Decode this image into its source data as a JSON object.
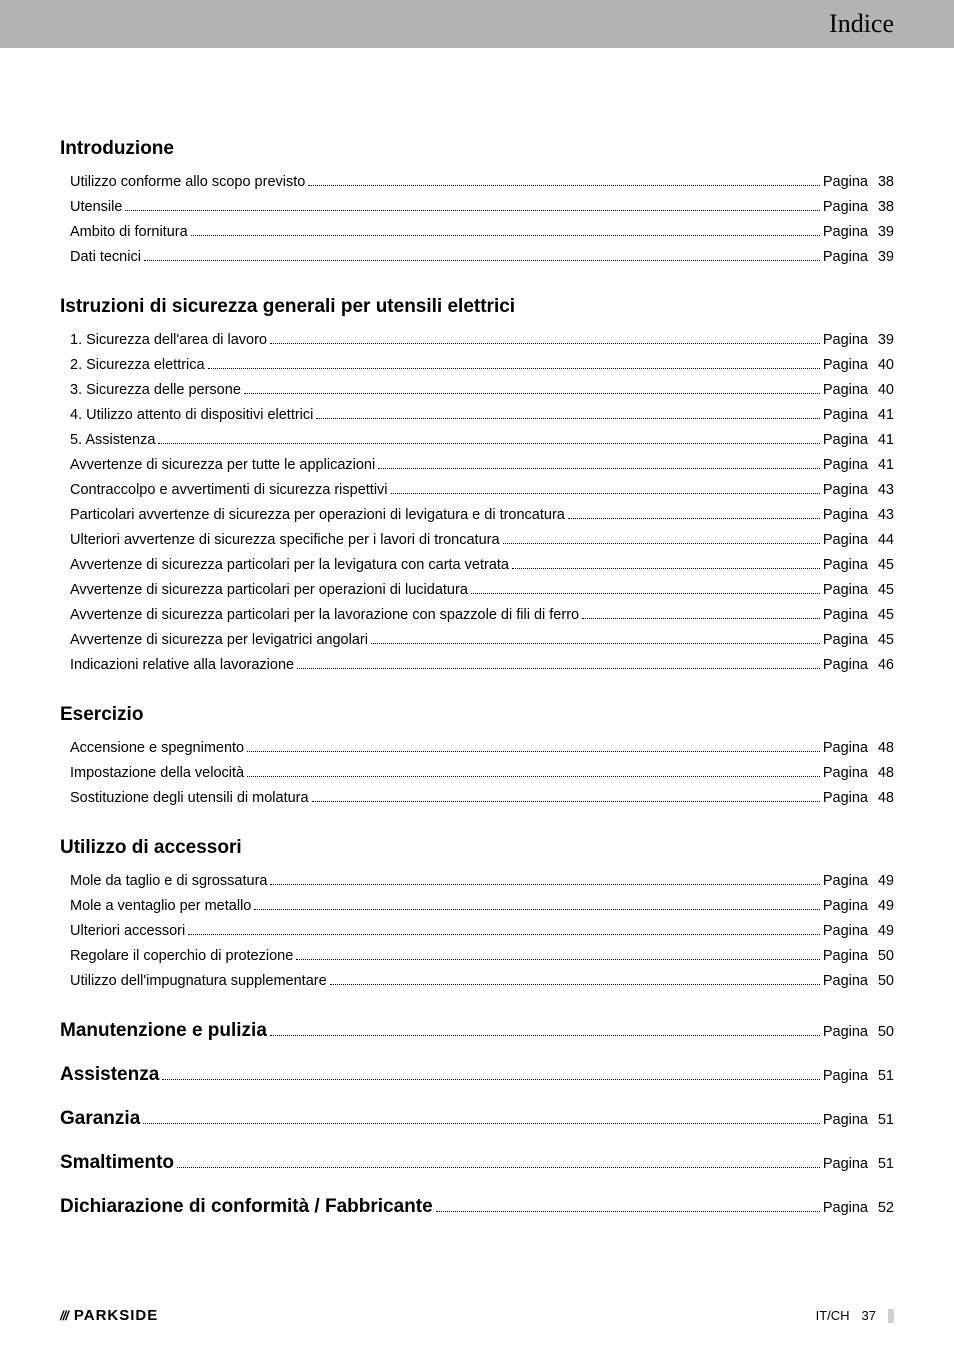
{
  "header": {
    "title": "Indice"
  },
  "sections": [
    {
      "title": "Introduzione",
      "entries": [
        {
          "text": "Utilizzo conforme allo scopo previsto",
          "page": "38"
        },
        {
          "text": "Utensile",
          "page": "38"
        },
        {
          "text": "Ambito di fornitura",
          "page": "39"
        },
        {
          "text": "Dati tecnici",
          "page": "39"
        }
      ]
    },
    {
      "title": "Istruzioni di sicurezza generali per utensili elettrici",
      "entries": [
        {
          "text": "1. Sicurezza dell'area di lavoro",
          "page": "39"
        },
        {
          "text": "2. Sicurezza elettrica",
          "page": "40"
        },
        {
          "text": "3. Sicurezza delle persone",
          "page": "40"
        },
        {
          "text": "4. Utilizzo attento di dispositivi elettrici",
          "page": "41"
        },
        {
          "text": "5. Assistenza",
          "page": "41"
        },
        {
          "text": "Avvertenze di sicurezza per tutte le applicazioni",
          "page": "41"
        },
        {
          "text": "Contraccolpo e avvertimenti di sicurezza rispettivi",
          "page": "43"
        },
        {
          "text": "Particolari avvertenze di sicurezza per operazioni di levigatura e di troncatura",
          "page": "43"
        },
        {
          "text": "Ulteriori avvertenze di sicurezza specifiche per i lavori di troncatura",
          "page": "44"
        },
        {
          "text": "Avvertenze di sicurezza particolari per la levigatura con carta vetrata",
          "page": "45"
        },
        {
          "text": "Avvertenze di sicurezza particolari per operazioni di lucidatura",
          "page": "45"
        },
        {
          "text": "Avvertenze di sicurezza particolari per la lavorazione con spazzole di fili di ferro",
          "page": "45"
        },
        {
          "text": "Avvertenze di sicurezza per levigatrici angolari",
          "page": "45"
        },
        {
          "text": "Indicazioni relative alla lavorazione",
          "page": "46"
        }
      ]
    },
    {
      "title": "Esercizio",
      "entries": [
        {
          "text": "Accensione e spegnimento",
          "page": "48"
        },
        {
          "text": "Impostazione della velocità",
          "page": "48"
        },
        {
          "text": "Sostituzione degli utensili di molatura",
          "page": "48"
        }
      ]
    },
    {
      "title": "Utilizzo di accessori",
      "entries": [
        {
          "text": "Mole da taglio e di sgrossatura",
          "page": "49"
        },
        {
          "text": "Mole a ventaglio per metallo",
          "page": "49"
        },
        {
          "text": "Ulteriori accessori",
          "page": "49"
        },
        {
          "text": "Regolare il coperchio di protezione",
          "page": "50"
        },
        {
          "text": "Utilizzo dell'impugnatura supplementare",
          "page": "50"
        }
      ]
    }
  ],
  "single_sections": [
    {
      "title": "Manutenzione e pulizia",
      "page": "50"
    },
    {
      "title": "Assistenza",
      "page": "51"
    },
    {
      "title": "Garanzia",
      "page": "51"
    },
    {
      "title": "Smaltimento",
      "page": "51"
    },
    {
      "title": "Dichiarazione di conformità / Fabbricante",
      "page": "52"
    }
  ],
  "page_label": "Pagina",
  "footer": {
    "brand_logo": "///",
    "brand_text": "PARKSIDE",
    "locale": "IT/CH",
    "page_number": "37"
  },
  "colors": {
    "header_bg": "#b3b3b3",
    "text": "#000000",
    "background": "#ffffff"
  }
}
